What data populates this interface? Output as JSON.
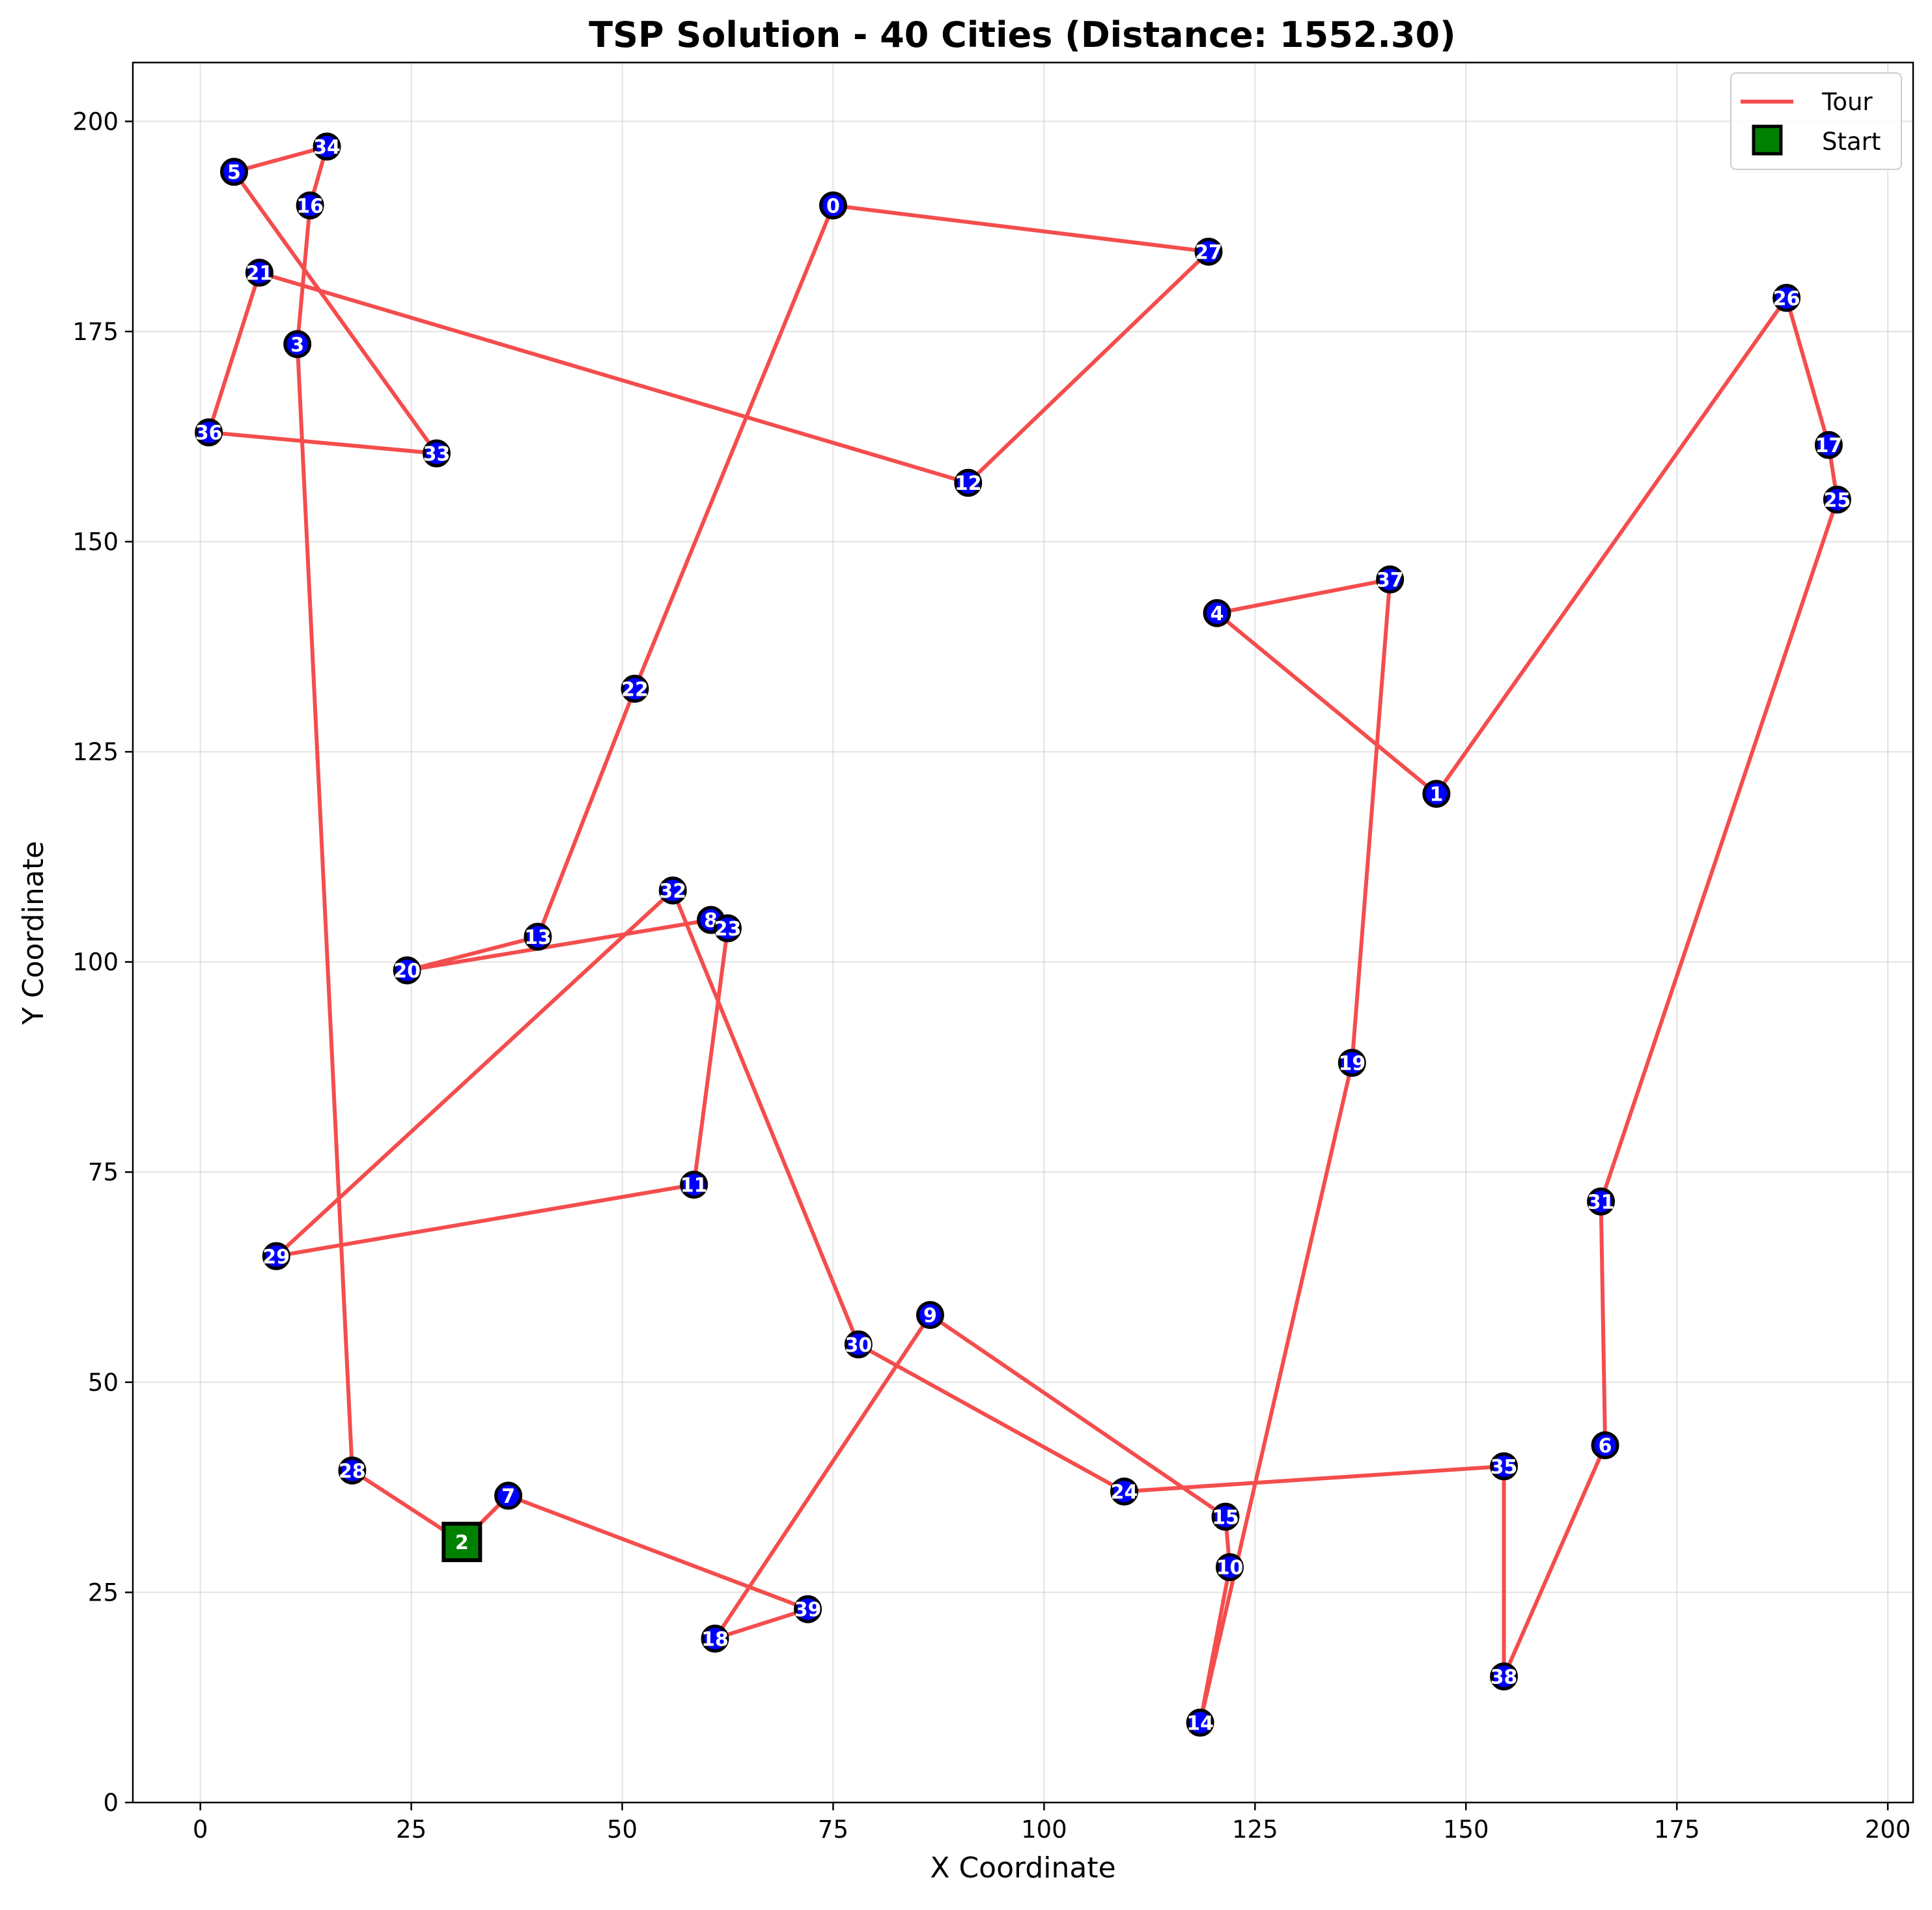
{
  "chart_data": {
    "type": "scatter",
    "title": "TSP Solution - 40 Cities (Distance: 1552.30)",
    "xlabel": "X Coordinate",
    "ylabel": "Y Coordinate",
    "xlim": [
      -8,
      203
    ],
    "ylim": [
      0,
      207
    ],
    "xticks": [
      0,
      25,
      50,
      75,
      100,
      125,
      150,
      175,
      200
    ],
    "yticks": [
      0,
      25,
      50,
      75,
      100,
      125,
      150,
      175,
      200
    ],
    "grid": true,
    "legend_position": "top-right",
    "legend": {
      "tour": "Tour",
      "start": "Start"
    },
    "colors": {
      "tour": "#f44d4d",
      "city": "#0000ff",
      "start": "#008000",
      "city_edge": "#000000"
    },
    "start_city": 2,
    "cities": [
      {
        "id": 0,
        "label": "0",
        "x": 75,
        "y": 190
      },
      {
        "id": 1,
        "label": "1",
        "x": 146.5,
        "y": 120
      },
      {
        "id": 2,
        "label": "2",
        "x": 31,
        "y": 31
      },
      {
        "id": 3,
        "label": "3",
        "x": 11.5,
        "y": 173.5
      },
      {
        "id": 4,
        "label": "4",
        "x": 120.5,
        "y": 141.5
      },
      {
        "id": 5,
        "label": "5",
        "x": 4,
        "y": 194
      },
      {
        "id": 6,
        "label": "6",
        "x": 166.5,
        "y": 42.5
      },
      {
        "id": 7,
        "label": "7",
        "x": 36.5,
        "y": 36.5
      },
      {
        "id": 8,
        "label": "8",
        "x": 60.5,
        "y": 105
      },
      {
        "id": 9,
        "label": "9",
        "x": 86.5,
        "y": 58
      },
      {
        "id": 10,
        "label": "10",
        "x": 122,
        "y": 28
      },
      {
        "id": 11,
        "label": "11",
        "x": 58.5,
        "y": 73.5
      },
      {
        "id": 12,
        "label": "12",
        "x": 91,
        "y": 157
      },
      {
        "id": 13,
        "label": "13",
        "x": 40,
        "y": 103
      },
      {
        "id": 14,
        "label": "14",
        "x": 118.5,
        "y": 9.5
      },
      {
        "id": 15,
        "label": "15",
        "x": 121.5,
        "y": 34
      },
      {
        "id": 16,
        "label": "16",
        "x": 13,
        "y": 190
      },
      {
        "id": 17,
        "label": "17",
        "x": 193,
        "y": 161.5
      },
      {
        "id": 18,
        "label": "18",
        "x": 61,
        "y": 19.5
      },
      {
        "id": 19,
        "label": "19",
        "x": 136.5,
        "y": 88
      },
      {
        "id": 20,
        "label": "20",
        "x": 24.5,
        "y": 99
      },
      {
        "id": 21,
        "label": "21",
        "x": 7,
        "y": 182
      },
      {
        "id": 22,
        "label": "22",
        "x": 51.5,
        "y": 132.5
      },
      {
        "id": 23,
        "label": "23",
        "x": 62.5,
        "y": 104
      },
      {
        "id": 24,
        "label": "24",
        "x": 109.5,
        "y": 37
      },
      {
        "id": 25,
        "label": "25",
        "x": 194,
        "y": 155
      },
      {
        "id": 26,
        "label": "26",
        "x": 188,
        "y": 179
      },
      {
        "id": 27,
        "label": "27",
        "x": 119.5,
        "y": 184.5
      },
      {
        "id": 28,
        "label": "28",
        "x": 18,
        "y": 39.5
      },
      {
        "id": 29,
        "label": "29",
        "x": 9,
        "y": 65
      },
      {
        "id": 30,
        "label": "30",
        "x": 78,
        "y": 54.5
      },
      {
        "id": 31,
        "label": "31",
        "x": 166,
        "y": 71.5
      },
      {
        "id": 32,
        "label": "32",
        "x": 56,
        "y": 108.5
      },
      {
        "id": 33,
        "label": "33",
        "x": 28,
        "y": 160.5
      },
      {
        "id": 34,
        "label": "34",
        "x": 15,
        "y": 197
      },
      {
        "id": 35,
        "label": "35",
        "x": 154.5,
        "y": 40
      },
      {
        "id": 36,
        "label": "36",
        "x": 1,
        "y": 163
      },
      {
        "id": 37,
        "label": "37",
        "x": 141,
        "y": 145.5
      },
      {
        "id": 38,
        "label": "38",
        "x": 154.5,
        "y": 15
      },
      {
        "id": 39,
        "label": "39",
        "x": 72,
        "y": 23
      }
    ],
    "tour": [
      2,
      7,
      39,
      18,
      9,
      15,
      10,
      14,
      19,
      37,
      4,
      1,
      26,
      17,
      25,
      31,
      6,
      38,
      35,
      24,
      30,
      32,
      29,
      11,
      23,
      8,
      20,
      13,
      22,
      0,
      27,
      12,
      21,
      36,
      33,
      5,
      34,
      16,
      3,
      28,
      2
    ]
  }
}
